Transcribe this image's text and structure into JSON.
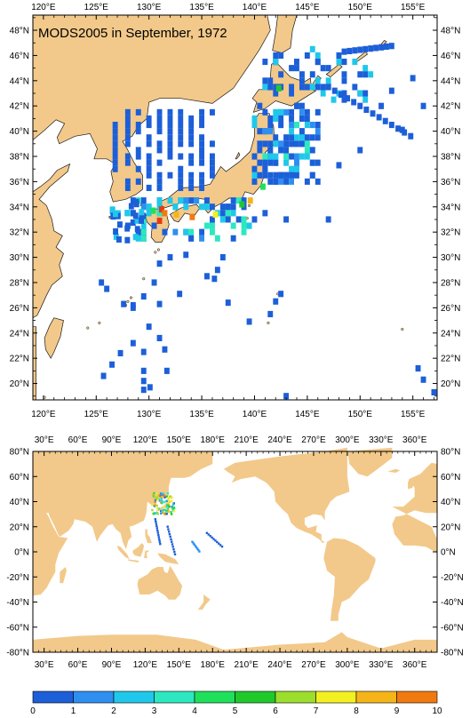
{
  "top_map": {
    "title": "MODS2005 in September, 1972",
    "lon_labels": [
      "120°E",
      "125°E",
      "130°E",
      "135°E",
      "140°E",
      "145°E",
      "150°E",
      "155°E"
    ],
    "lat_labels_left": [
      "48°N",
      "46°N",
      "44°N",
      "42°N",
      "40°N",
      "38°N",
      "36°N",
      "34°N",
      "32°N",
      "30°N",
      "28°N",
      "26°N",
      "24°N",
      "22°N",
      "20°N"
    ],
    "lat_labels_right": [
      "48°N",
      "46°N",
      "44°N",
      "42°N",
      "40°N",
      "38°N",
      "36°N",
      "34°N",
      "32°N",
      "30°N",
      "28°N",
      "26°N",
      "24°N",
      "22°N",
      "20°N"
    ],
    "lon_range": [
      119.0,
      157.3
    ],
    "lat_range": [
      18.7,
      49.2
    ]
  },
  "bottom_map": {
    "lon_labels": [
      "30°E",
      "60°E",
      "90°E",
      "120°E",
      "150°E",
      "180°E",
      "210°E",
      "240°E",
      "270°E",
      "300°E",
      "330°E",
      "360°E"
    ],
    "lat_labels_left": [
      "80°N",
      "60°N",
      "40°N",
      "20°N",
      "0°N",
      "-20°N",
      "-40°N",
      "-60°N",
      "-80°N"
    ],
    "lat_labels_right": [
      "80°N",
      "60°N",
      "40°N",
      "20°N",
      "0°N",
      "-20°N",
      "-40°N",
      "-60°N",
      "-80°N"
    ],
    "lon_range": [
      20,
      380
    ],
    "lat_range": [
      -80,
      80
    ]
  },
  "colorbar": {
    "labels": [
      "0",
      "1",
      "2",
      "3",
      "4",
      "5",
      "6",
      "7",
      "8",
      "9",
      "10"
    ],
    "colors": [
      "#1c5fd8",
      "#2f8ff0",
      "#1fc8ea",
      "#2ce8c0",
      "#1ee05a",
      "#20c82c",
      "#9cde2c",
      "#f2f020",
      "#f5b418",
      "#f07a10",
      "#e23c12"
    ]
  },
  "colors": {
    "land": "#f2c98a",
    "ocean": "#ffffff",
    "coast": "#1a1a1a"
  }
}
